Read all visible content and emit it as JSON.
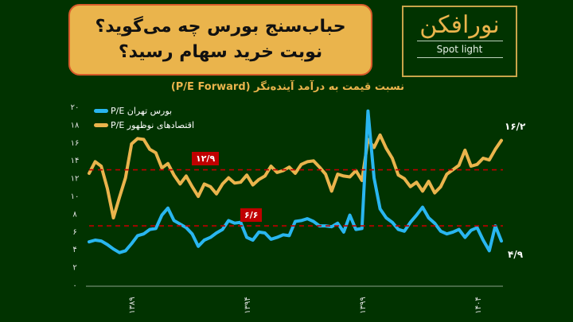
{
  "header": {
    "title_line1": "حباب‌سنج بورس چه می‌گوید؟",
    "title_line2": "نوبت خرید سهام رسید؟"
  },
  "logo": {
    "name_fa": "نورافکن",
    "name_en": "Spot light"
  },
  "chart_data": {
    "type": "line",
    "title": "نسبت قیمت به درآمد آینده‌نگر (P/E Forward)",
    "xlabel": "",
    "ylabel": "",
    "ylim": [
      0,
      20
    ],
    "yticks": [
      "۰",
      "۲",
      "۴",
      "۶",
      "۸",
      "۱۰",
      "۱۲",
      "۱۴",
      "۱۶",
      "۱۸",
      "۲۰"
    ],
    "xticks": [
      {
        "label": "۱۳۸۹",
        "pos": 0.11
      },
      {
        "label": "۱۳۹۴",
        "pos": 0.39
      },
      {
        "label": "۱۳۹۹",
        "pos": 0.67
      },
      {
        "label": "۱۴۰۴",
        "pos": 0.95
      }
    ],
    "grid": false,
    "legend_position": "top-left",
    "legend": [
      {
        "name": "P/E بورس تهران",
        "color": "#29b6f0"
      },
      {
        "name": "P/E اقتصادهای نوظهور",
        "color": "#eab44c"
      }
    ],
    "reference_lines": [
      {
        "label": "۱۲/۹",
        "value": 12.9,
        "color": "#c00000"
      },
      {
        "label": "۶/۶",
        "value": 6.6,
        "color": "#c00000"
      }
    ],
    "end_labels": {
      "emerging": "۱۶/۲",
      "tehran": "۴/۹"
    },
    "series": [
      {
        "name": "P/E اقتصادهای نوظهور",
        "color": "#eab44c",
        "values": [
          12.5,
          13.8,
          13.3,
          10.8,
          7.5,
          9.8,
          12.0,
          15.8,
          16.4,
          16.3,
          15.2,
          14.8,
          13.1,
          13.6,
          12.3,
          11.3,
          12.2,
          11.0,
          9.9,
          11.3,
          11.0,
          10.2,
          11.3,
          12.0,
          11.4,
          11.5,
          12.3,
          11.2,
          11.8,
          12.2,
          13.3,
          12.6,
          12.8,
          13.2,
          12.5,
          13.5,
          13.8,
          13.9,
          13.2,
          12.4,
          10.5,
          12.4,
          12.2,
          12.1,
          12.8,
          11.7,
          16.3,
          15.4,
          16.8,
          15.3,
          14.2,
          12.3,
          11.9,
          11.0,
          11.5,
          10.5,
          11.6,
          10.3,
          11.0,
          12.4,
          12.9,
          13.4,
          15.1,
          13.3,
          13.5,
          14.2,
          14.0,
          15.2,
          16.2
        ]
      },
      {
        "name": "P/E بورس تهران",
        "color": "#29b6f0",
        "values": [
          4.8,
          5.0,
          4.9,
          4.5,
          4.0,
          3.6,
          3.8,
          4.6,
          5.5,
          5.7,
          6.2,
          6.3,
          7.8,
          8.6,
          7.2,
          6.8,
          6.4,
          5.7,
          4.3,
          5.0,
          5.3,
          5.8,
          6.2,
          7.2,
          6.9,
          7.0,
          5.3,
          5.0,
          5.9,
          5.8,
          5.1,
          5.3,
          5.6,
          5.5,
          7.1,
          7.2,
          7.4,
          7.1,
          6.6,
          6.6,
          6.5,
          6.9,
          5.9,
          7.8,
          6.2,
          6.3,
          19.5,
          12.0,
          8.5,
          7.5,
          7.0,
          6.2,
          6.0,
          7.0,
          7.8,
          8.7,
          7.5,
          6.9,
          6.0,
          5.7,
          5.9,
          6.2,
          5.3,
          6.1,
          6.4,
          5.0,
          3.8,
          6.6,
          4.9
        ]
      }
    ]
  }
}
